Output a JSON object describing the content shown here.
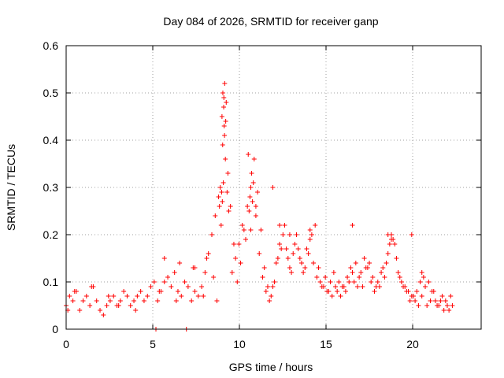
{
  "chart_data": {
    "type": "scatter",
    "title": "Day 084 of 2026, SRMTID for receiver ganp",
    "xlabel": "GPS time / hours",
    "ylabel": "SRMTID / TECUs",
    "xlim": [
      0,
      24.5
    ],
    "ylim": [
      0,
      0.6
    ],
    "x_ticks": [
      0,
      5,
      10,
      15,
      20
    ],
    "x_tick_labels": [
      "0",
      "5",
      "10",
      "15",
      "20"
    ],
    "y_ticks": [
      0,
      0.1,
      0.2,
      0.3,
      0.4,
      0.5,
      0.6
    ],
    "y_tick_labels": [
      "0",
      "0.1",
      "0.2",
      "0.3",
      "0.4",
      "0.5",
      "0.6"
    ],
    "grid": true,
    "marker": "+",
    "color": "#ff0000",
    "series": [
      {
        "name": "SRMTID",
        "x": [
          0.0,
          0.2,
          0.4,
          0.6,
          0.8,
          1.0,
          1.2,
          1.4,
          1.6,
          1.8,
          2.0,
          2.2,
          2.4,
          2.6,
          2.8,
          3.0,
          3.2,
          3.4,
          3.6,
          3.8,
          4.0,
          4.2,
          4.4,
          4.6,
          4.8,
          5.0,
          5.2,
          5.4,
          5.6,
          5.8,
          6.0,
          6.2,
          6.4,
          6.6,
          6.8,
          7.0,
          7.2,
          7.4,
          7.6,
          7.8,
          8.0,
          8.2,
          8.4,
          8.6,
          8.8,
          9.0,
          9.1,
          9.2,
          9.25,
          9.3,
          9.35,
          9.4,
          9.5,
          9.6,
          9.8,
          10.0,
          10.2,
          10.4,
          10.6,
          10.8,
          10.9,
          11.0,
          11.2,
          11.4,
          11.6,
          11.8,
          12.0,
          12.2,
          12.4,
          12.6,
          12.8,
          13.0,
          13.2,
          13.4,
          13.6,
          13.8,
          14.0,
          14.2,
          14.4,
          14.6,
          14.8,
          15.0,
          15.2,
          15.4,
          15.6,
          15.8,
          16.0,
          16.2,
          16.4,
          16.6,
          16.8,
          17.0,
          17.2,
          17.4,
          17.6,
          17.8,
          18.0,
          18.2,
          18.4,
          18.6,
          18.8,
          19.0,
          19.2,
          19.4,
          19.6,
          19.8,
          20.0,
          20.2,
          20.4,
          20.6,
          20.8,
          21.0,
          21.2,
          21.4,
          21.6,
          21.8,
          22.0,
          22.2,
          22.4,
          22.6,
          22.8,
          5.3,
          7.1,
          0.1,
          0.5,
          1.5,
          2.5,
          3.1,
          4.1,
          5.5,
          6.5,
          7.5,
          8.1,
          8.7,
          9.15,
          9.22,
          9.28,
          9.33,
          9.45,
          9.55,
          9.7,
          9.9,
          10.1,
          10.3,
          10.5,
          10.7,
          10.85,
          10.95,
          11.1,
          11.3,
          11.5,
          11.7,
          11.9,
          12.1,
          12.3,
          12.5,
          12.7,
          12.9,
          13.1,
          13.3,
          13.5,
          13.7,
          13.9,
          14.1,
          14.3,
          14.5,
          14.7,
          14.9,
          15.1,
          15.3,
          15.5,
          15.7,
          15.9,
          16.1,
          16.3,
          16.5,
          16.7,
          16.9,
          17.1,
          17.3,
          17.5,
          17.7,
          17.9,
          18.1,
          18.3,
          18.5,
          18.7,
          18.9,
          19.1,
          19.3,
          19.5,
          19.7,
          19.9,
          20.1,
          20.3,
          20.5,
          20.7,
          20.9,
          21.1,
          21.3,
          21.5,
          21.7,
          21.9,
          22.1,
          22.3,
          22.5,
          22.7,
          8.9,
          9.05,
          9.18,
          9.24,
          9.31,
          9.36,
          9.42,
          10.75,
          10.9,
          11.05,
          11.2,
          12.2,
          12.6,
          13.2,
          14.4,
          16.9,
          19.0,
          19.2,
          20.4,
          21.0,
          5.8,
          6.7,
          7.6,
          8.3
        ],
        "y": [
          0.05,
          0.07,
          0.06,
          0.08,
          0.04,
          0.06,
          0.07,
          0.05,
          0.09,
          0.06,
          0.04,
          0.03,
          0.05,
          0.06,
          0.07,
          0.05,
          0.06,
          0.08,
          0.07,
          0.05,
          0.06,
          0.07,
          0.08,
          0.06,
          0.07,
          0.09,
          0.1,
          0.06,
          0.08,
          0.1,
          0.11,
          0.09,
          0.12,
          0.08,
          0.07,
          0.1,
          0.09,
          0.06,
          0.08,
          0.07,
          0.09,
          0.12,
          0.16,
          0.2,
          0.24,
          0.28,
          0.3,
          0.45,
          0.5,
          0.47,
          0.41,
          0.36,
          0.29,
          0.25,
          0.12,
          0.15,
          0.18,
          0.22,
          0.19,
          0.25,
          0.3,
          0.27,
          0.24,
          0.16,
          0.11,
          0.08,
          0.06,
          0.09,
          0.14,
          0.18,
          0.2,
          0.17,
          0.13,
          0.16,
          0.2,
          0.15,
          0.12,
          0.17,
          0.19,
          0.14,
          0.11,
          0.1,
          0.09,
          0.08,
          0.1,
          0.12,
          0.08,
          0.07,
          0.09,
          0.11,
          0.13,
          0.1,
          0.09,
          0.12,
          0.15,
          0.13,
          0.1,
          0.08,
          0.1,
          0.12,
          0.11,
          0.16,
          0.2,
          0.18,
          0.12,
          0.1,
          0.09,
          0.08,
          0.07,
          0.06,
          0.05,
          0.07,
          0.09,
          0.1,
          0.08,
          0.06,
          0.05,
          0.07,
          0.06,
          0.04,
          0.05,
          0.0,
          0.0,
          0.04,
          0.08,
          0.09,
          0.07,
          0.05,
          0.04,
          0.08,
          0.06,
          0.13,
          0.07,
          0.11,
          0.22,
          0.27,
          0.31,
          0.43,
          0.48,
          0.33,
          0.26,
          0.18,
          0.1,
          0.14,
          0.21,
          0.26,
          0.28,
          0.33,
          0.36,
          0.29,
          0.21,
          0.13,
          0.09,
          0.07,
          0.1,
          0.15,
          0.17,
          0.22,
          0.15,
          0.12,
          0.18,
          0.17,
          0.14,
          0.13,
          0.16,
          0.2,
          0.22,
          0.13,
          0.09,
          0.11,
          0.08,
          0.07,
          0.09,
          0.1,
          0.09,
          0.08,
          0.1,
          0.12,
          0.14,
          0.11,
          0.09,
          0.13,
          0.14,
          0.11,
          0.09,
          0.09,
          0.13,
          0.14,
          0.18,
          0.19,
          0.15,
          0.11,
          0.09,
          0.08,
          0.06,
          0.07,
          0.08,
          0.1,
          0.11,
          0.05,
          0.06,
          0.08,
          0.05,
          0.06,
          0.04,
          0.05,
          0.07,
          0.06,
          0.26,
          0.29,
          0.39,
          0.49,
          0.52,
          0.44,
          0.37,
          0.21,
          0.31,
          0.26,
          0.3,
          0.22,
          0.2,
          0.21,
          0.22,
          0.2,
          0.19,
          0.2,
          0.12,
          0.15,
          0.14,
          0.13,
          0.15
        ]
      }
    ]
  }
}
